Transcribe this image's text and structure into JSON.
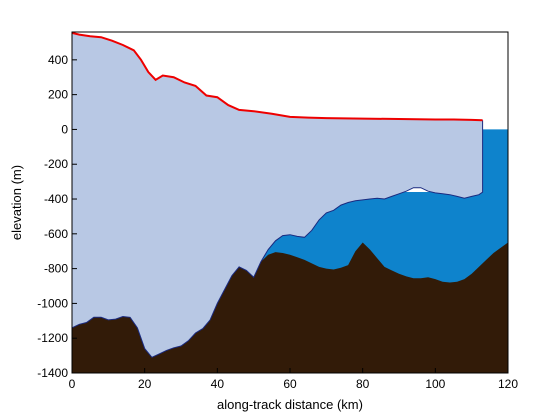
{
  "chart_data": {
    "type": "area",
    "title": "",
    "xlabel": "along-track distance (km)",
    "ylabel": "elevation (m)",
    "xlim": [
      0,
      120
    ],
    "ylim": [
      -1400,
      560
    ],
    "xticks": [
      0,
      20,
      40,
      60,
      80,
      100,
      120
    ],
    "yticks": [
      400,
      200,
      0,
      -200,
      -400,
      -600,
      -800,
      -1000,
      -1200,
      -1400
    ],
    "grid": false,
    "legend": "none",
    "colors": {
      "ice": "#b8c8e4",
      "ocean": "#0e83cc",
      "bed": "#321b08",
      "surface_line": "#ee0000",
      "ice_base_line": "#1a2a80"
    },
    "series": [
      {
        "role": "ice-surface",
        "x": [
          0,
          2,
          5,
          8,
          11,
          14,
          17,
          19,
          21,
          23,
          25,
          28,
          31,
          34,
          37,
          40,
          43,
          46,
          50,
          55,
          60,
          65,
          70,
          80,
          90,
          100,
          105,
          110,
          113
        ],
        "y": [
          555,
          545,
          535,
          530,
          510,
          485,
          455,
          400,
          330,
          285,
          310,
          300,
          270,
          250,
          195,
          185,
          140,
          112,
          105,
          90,
          72,
          68,
          65,
          62,
          60,
          57,
          57,
          55,
          53
        ]
      },
      {
        "role": "ice-base",
        "x": [
          0,
          2,
          4,
          6,
          8,
          10,
          12,
          14,
          16,
          18,
          20,
          22,
          24,
          26,
          28,
          30,
          32,
          34,
          36,
          38,
          40,
          42,
          44,
          46,
          48,
          50,
          52,
          54,
          56,
          58,
          60,
          62,
          64,
          66,
          68,
          70,
          72,
          74,
          76,
          78,
          80,
          82,
          84,
          86,
          88,
          90,
          92,
          94,
          96,
          98,
          100,
          102,
          104,
          106,
          108,
          110,
          112,
          113
        ],
        "y": [
          -1140,
          -1120,
          -1110,
          -1080,
          -1080,
          -1095,
          -1090,
          -1075,
          -1080,
          -1140,
          -1260,
          -1310,
          -1290,
          -1270,
          -1255,
          -1245,
          -1215,
          -1170,
          -1145,
          -1095,
          -1000,
          -920,
          -840,
          -790,
          -810,
          -850,
          -760,
          -690,
          -640,
          -610,
          -605,
          -615,
          -620,
          -580,
          -520,
          -480,
          -465,
          -435,
          -420,
          -410,
          -405,
          -400,
          -395,
          -400,
          -385,
          -370,
          -355,
          -335,
          -335,
          -355,
          -365,
          -370,
          -375,
          -385,
          -395,
          -385,
          -375,
          -360
        ]
      },
      {
        "role": "ice-front",
        "x": [
          113,
          113
        ],
        "y": [
          53,
          -360
        ]
      },
      {
        "role": "ocean-surface",
        "x": [
          113,
          120
        ],
        "y": [
          0,
          0
        ]
      },
      {
        "role": "bed",
        "x": [
          0,
          2,
          4,
          6,
          8,
          10,
          12,
          14,
          16,
          18,
          20,
          22,
          24,
          26,
          28,
          30,
          32,
          34,
          36,
          38,
          40,
          42,
          44,
          46,
          48,
          50,
          52,
          54,
          56,
          58,
          60,
          62,
          64,
          66,
          68,
          70,
          72,
          74,
          76,
          78,
          80,
          82,
          84,
          86,
          88,
          90,
          92,
          94,
          96,
          98,
          100,
          102,
          104,
          106,
          108,
          110,
          112,
          114,
          116,
          118,
          120
        ],
        "y": [
          -1140,
          -1120,
          -1110,
          -1080,
          -1080,
          -1095,
          -1090,
          -1075,
          -1080,
          -1140,
          -1260,
          -1310,
          -1290,
          -1270,
          -1255,
          -1245,
          -1215,
          -1170,
          -1145,
          -1095,
          -1000,
          -920,
          -840,
          -790,
          -810,
          -850,
          -760,
          -720,
          -705,
          -710,
          -720,
          -735,
          -750,
          -770,
          -790,
          -800,
          -805,
          -795,
          -780,
          -700,
          -650,
          -690,
          -740,
          -790,
          -810,
          -830,
          -845,
          -855,
          -855,
          -850,
          -860,
          -875,
          -880,
          -875,
          -860,
          -830,
          -790,
          -750,
          -710,
          -680,
          -650
        ]
      }
    ]
  }
}
